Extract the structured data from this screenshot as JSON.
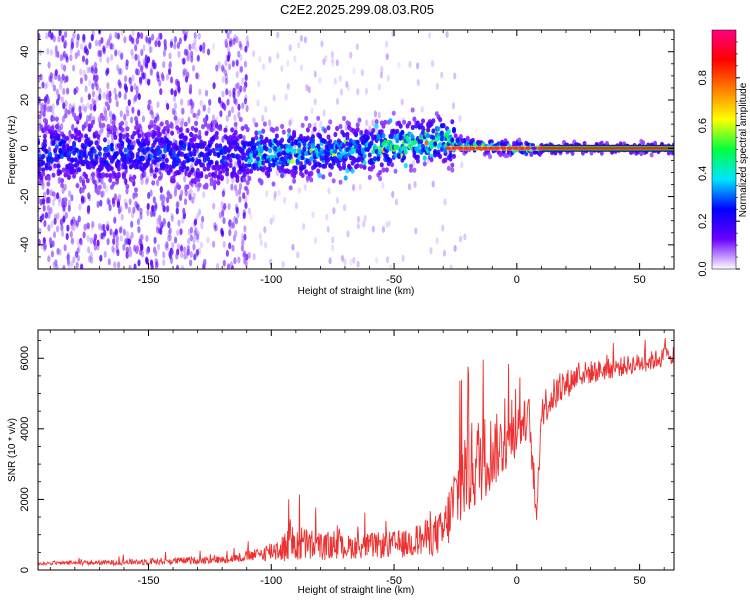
{
  "title": "C2E2.2025.299.08.03.R05",
  "chart_data": [
    {
      "type": "heatmap",
      "name": "spectrogram",
      "xlabel": "Height of straight line (km)",
      "ylabel": "Frequency (Hz)",
      "xlim": [
        -195,
        64
      ],
      "ylim": [
        -50,
        49
      ],
      "xticks": [
        -150,
        -100,
        -50,
        0,
        50
      ],
      "xtick_labels": [
        "-150",
        "-100",
        "-50",
        "0",
        "50"
      ],
      "yticks": [
        -40,
        -20,
        0,
        20,
        40
      ],
      "ytick_labels": [
        "-40",
        "-20",
        "0",
        "20",
        "40"
      ],
      "colorbar": {
        "label": "Normalized spectral amplitude",
        "range": [
          0,
          1
        ],
        "ticks": [
          0.0,
          0.2,
          0.4,
          0.6,
          0.8
        ],
        "tick_labels": [
          "0.0",
          "0.2",
          "0.4",
          "0.6",
          "0.8"
        ],
        "colormap": [
          "#ffffff",
          "#6a00ff",
          "#0000ff",
          "#00e5ff",
          "#00ff40",
          "#ffff00",
          "#ff8000",
          "#ff0000",
          "#ff0080"
        ]
      },
      "features": {
        "noise_region_x": [
          -195,
          -110
        ],
        "band_center_profile": [
          {
            "x": -160,
            "f": -2
          },
          {
            "x": -110,
            "f": -3
          },
          {
            "x": -60,
            "f": 0
          },
          {
            "x": -30,
            "f": 4
          },
          {
            "x": -20,
            "f": 1
          },
          {
            "x": 0,
            "f": 0
          },
          {
            "x": 64,
            "f": 0
          }
        ],
        "carrier_line_x": [
          10,
          64
        ],
        "carrier_frequency": 0
      }
    },
    {
      "type": "line",
      "name": "snr",
      "xlabel": "Height of straight line (km)",
      "ylabel": "SNR (10 * v/v)",
      "xlim": [
        -195,
        64
      ],
      "ylim": [
        0,
        6800
      ],
      "xticks": [
        -150,
        -100,
        -50,
        0,
        50
      ],
      "xtick_labels": [
        "-150",
        "-100",
        "-50",
        "0",
        "50"
      ],
      "yticks": [
        0,
        2000,
        4000,
        6000
      ],
      "ytick_labels": [
        "0",
        "2000",
        "4000",
        "6000"
      ],
      "color": "#ee3030",
      "x": [
        -195,
        -170,
        -150,
        -120,
        -105,
        -90,
        -75,
        -60,
        -45,
        -30,
        -22,
        -15,
        -5,
        0,
        5,
        8,
        10,
        15,
        25,
        40,
        55,
        64
      ],
      "y": [
        180,
        200,
        230,
        280,
        420,
        700,
        600,
        650,
        700,
        1000,
        2500,
        3000,
        3500,
        3900,
        4300,
        1300,
        4500,
        4900,
        5500,
        5700,
        5900,
        6100
      ],
      "noise": [
        60,
        80,
        120,
        130,
        220,
        700,
        420,
        450,
        500,
        800,
        1800,
        1600,
        1100,
        900,
        700,
        300,
        700,
        600,
        450,
        350,
        350,
        350
      ]
    }
  ]
}
